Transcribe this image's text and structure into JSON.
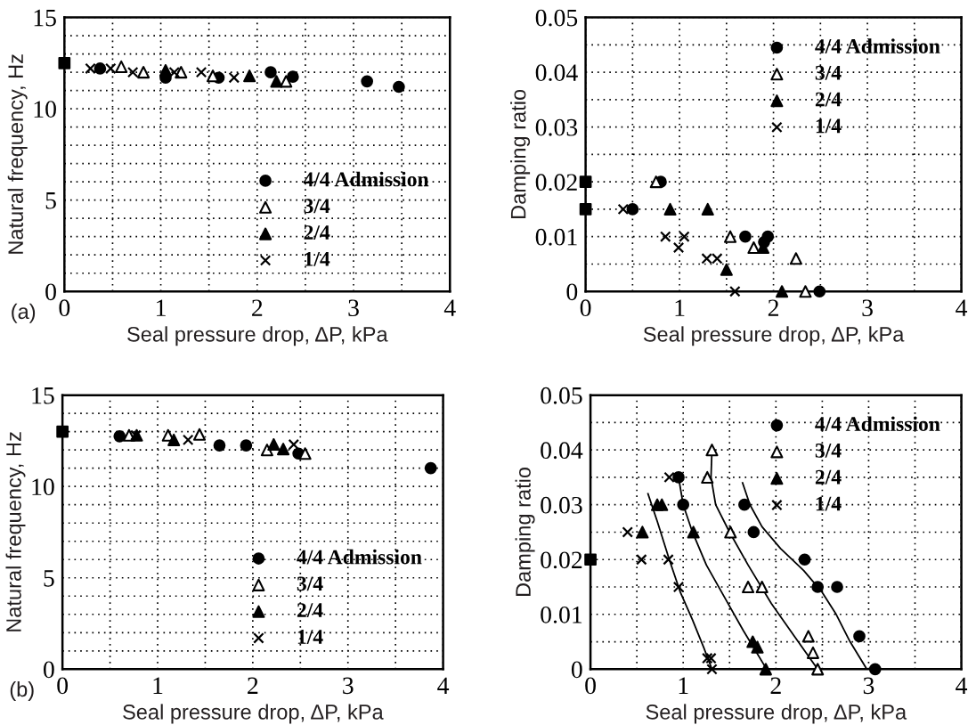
{
  "chart_data": [
    {
      "type": "scatter",
      "xlabel": "Seal pressure drop, ΔP, kPa",
      "ylabel": "Natural frequency, Hz",
      "annotations": [
        "(a)"
      ],
      "xlim": [
        0,
        4
      ],
      "ylim": [
        0,
        15
      ],
      "xticks": [
        0,
        {
          "value": 0.5,
          "label": null
        },
        1,
        {
          "value": 1.5,
          "label": null
        },
        2,
        {
          "value": 2.5,
          "label": null
        },
        3,
        {
          "value": 3.5,
          "label": null
        },
        4
      ],
      "yticks": [
        0,
        {
          "value": 1,
          "label": null
        },
        {
          "value": 2,
          "label": null
        },
        {
          "value": 3,
          "label": null
        },
        {
          "value": 4,
          "label": null
        },
        5,
        {
          "value": 6,
          "label": null
        },
        {
          "value": 7,
          "label": null
        },
        {
          "value": 8,
          "label": null
        },
        {
          "value": 9,
          "label": null
        },
        10,
        {
          "value": 11,
          "label": null
        },
        {
          "value": 12,
          "label": null
        },
        {
          "value": 13,
          "label": null
        },
        {
          "value": 14,
          "label": null
        },
        15
      ],
      "grid": true,
      "legend": "bottom right",
      "series": [
        {
          "name": "4/4 Admission",
          "color": "#000000",
          "marker": "circle",
          "x": [
            0.37,
            1.05,
            1.6,
            2.14,
            2.37,
            3.14,
            3.47
          ],
          "values": [
            12.2,
            11.7,
            11.7,
            12.0,
            11.75,
            11.5,
            11.2
          ]
        },
        {
          "name": "3/4",
          "color": "#ffffff",
          "marker": "triangle",
          "x": [
            0.59,
            0.82,
            1.21,
            1.54,
            2.3
          ],
          "values": [
            12.3,
            12.0,
            12.0,
            11.8,
            11.5
          ]
        },
        {
          "name": "2/4",
          "color": "#000000",
          "marker": "triangle",
          "x": [
            1.05,
            1.92,
            2.2
          ],
          "values": [
            12.1,
            11.8,
            11.5
          ]
        },
        {
          "name": "1/4",
          "color": "#000000",
          "marker": "cross",
          "x": [
            0.27,
            0.48,
            0.71,
            1.14,
            1.42,
            1.76
          ],
          "values": [
            12.2,
            12.2,
            12.0,
            12.0,
            12.0,
            11.7
          ]
        },
        {
          "color": "#000000",
          "marker": "square",
          "x": [
            0
          ],
          "values": [
            12.5
          ]
        }
      ]
    },
    {
      "type": "scatter",
      "xlabel": "Seal pressure drop, ΔP, kPa",
      "ylabel": "Damping ratio",
      "xlim": [
        0,
        4
      ],
      "ylim": [
        0,
        0.05
      ],
      "xticks": [
        0,
        {
          "value": 0.5,
          "label": null
        },
        1,
        {
          "value": 1.5,
          "label": null
        },
        2,
        {
          "value": 2.5,
          "label": null
        },
        3,
        {
          "value": 3.5,
          "label": null
        },
        4
      ],
      "yticks": [
        0,
        {
          "value": 0.005,
          "label": null
        },
        0.01,
        {
          "value": 0.015,
          "label": null
        },
        0.02,
        {
          "value": 0.025,
          "label": null
        },
        0.03,
        {
          "value": 0.035,
          "label": null
        },
        0.04,
        {
          "value": 0.045,
          "label": null
        },
        0.05
      ],
      "grid": true,
      "legend": "top right",
      "series": [
        {
          "name": "4/4 Admission",
          "color": "#000000",
          "marker": "circle",
          "x": [
            0.5,
            0.8,
            1.7,
            1.94,
            1.9,
            2.49
          ],
          "values": [
            0.015,
            0.02,
            0.01,
            0.01,
            0.009,
            0
          ]
        },
        {
          "name": "3/4",
          "color": "#ffffff",
          "marker": "triangle",
          "x": [
            0.75,
            1.54,
            1.79,
            2.24,
            2.34
          ],
          "values": [
            0.02,
            0.01,
            0.008,
            0.006,
            0
          ]
        },
        {
          "name": "2/4",
          "color": "#000000",
          "marker": "triangle",
          "x": [
            0.9,
            1.3,
            1.5,
            1.89,
            2.09
          ],
          "values": [
            0.015,
            0.015,
            0.004,
            0.008,
            0
          ]
        },
        {
          "name": "1/4",
          "color": "#000000",
          "marker": "cross",
          "x": [
            0.4,
            0.85,
            1.05,
            0.99,
            1.29,
            1.4,
            1.59
          ],
          "values": [
            0.015,
            0.01,
            0.01,
            0.008,
            0.006,
            0.006,
            0
          ]
        },
        {
          "color": "#000000",
          "marker": "square",
          "x": [
            0,
            0
          ],
          "values": [
            0.02,
            0.015
          ]
        }
      ]
    },
    {
      "type": "scatter",
      "xlabel": "Seal pressure drop, ΔP, kPa",
      "ylabel": "Natural frequency, Hz",
      "annotations": [
        "(b)"
      ],
      "xlim": [
        0,
        4
      ],
      "ylim": [
        0,
        15
      ],
      "xticks": [
        0,
        {
          "value": 0.5,
          "label": null
        },
        1,
        {
          "value": 1.5,
          "label": null
        },
        2,
        {
          "value": 2.5,
          "label": null
        },
        3,
        {
          "value": 3.5,
          "label": null
        },
        4
      ],
      "yticks": [
        0,
        {
          "value": 1,
          "label": null
        },
        {
          "value": 2,
          "label": null
        },
        {
          "value": 3,
          "label": null
        },
        {
          "value": 4,
          "label": null
        },
        5,
        {
          "value": 6,
          "label": null
        },
        {
          "value": 7,
          "label": null
        },
        {
          "value": 8,
          "label": null
        },
        {
          "value": 9,
          "label": null
        },
        10,
        {
          "value": 11,
          "label": null
        },
        {
          "value": 12,
          "label": null
        },
        {
          "value": 13,
          "label": null
        },
        {
          "value": 14,
          "label": null
        },
        15
      ],
      "grid": true,
      "legend": "bottom right",
      "series": [
        {
          "name": "4/4 Admission",
          "color": "#000000",
          "marker": "circle",
          "x": [
            0.6,
            1.1,
            1.65,
            1.93,
            2.48,
            3.87
          ],
          "values": [
            12.75,
            null,
            12.25,
            12.25,
            11.8,
            11.0
          ]
        },
        {
          "name": "3/4",
          "color": "#ffffff",
          "marker": "triangle",
          "x": [
            0.7,
            1.11,
            1.44,
            2.15,
            2.55
          ],
          "values": [
            12.8,
            12.8,
            12.85,
            12.0,
            11.8
          ]
        },
        {
          "name": "2/4",
          "color": "#000000",
          "marker": "triangle",
          "x": [
            0.78,
            1.17,
            2.22,
            2.32
          ],
          "values": [
            12.8,
            12.55,
            12.3,
            12.05
          ]
        },
        {
          "name": "1/4",
          "color": "#000000",
          "marker": "cross",
          "x": [
            0.77,
            1.32,
            2.43
          ],
          "values": [
            12.8,
            12.55,
            12.3
          ]
        },
        {
          "color": "#000000",
          "marker": "square",
          "x": [
            0
          ],
          "values": [
            13.0
          ]
        }
      ]
    },
    {
      "type": "scatter",
      "xlabel": "Seal pressure drop, ΔP, kPa",
      "ylabel": "Damping ratio",
      "xlim": [
        0,
        4
      ],
      "ylim": [
        0,
        0.05
      ],
      "xticks": [
        0,
        {
          "value": 0.5,
          "label": null
        },
        1,
        {
          "value": 1.5,
          "label": null
        },
        2,
        {
          "value": 2.5,
          "label": null
        },
        3,
        {
          "value": 3.5,
          "label": null
        },
        4
      ],
      "yticks": [
        0,
        {
          "value": 0.005,
          "label": null
        },
        0.01,
        {
          "value": 0.015,
          "label": null
        },
        0.02,
        {
          "value": 0.025,
          "label": null
        },
        0.03,
        {
          "value": 0.035,
          "label": null
        },
        0.04,
        {
          "value": 0.045,
          "label": null
        },
        0.05
      ],
      "grid": true,
      "legend": "top right",
      "series": [
        {
          "name": "4/4 Admission",
          "color": "#000000",
          "marker": "circle",
          "x": [
            0.95,
            1.0,
            1.66,
            1.76,
            2.31,
            2.45,
            2.66,
            2.9,
            3.07
          ],
          "values": [
            0.035,
            0.03,
            0.03,
            0.025,
            0.02,
            0.015,
            0.015,
            0.006,
            0
          ]
        },
        {
          "name": "3/4",
          "color": "#ffffff",
          "marker": "triangle",
          "x": [
            1.31,
            1.26,
            1.51,
            1.7,
            1.85,
            2.35,
            2.4,
            2.45
          ],
          "values": [
            0.04,
            0.035,
            0.025,
            0.015,
            0.015,
            0.006,
            0.003,
            0
          ]
        },
        {
          "name": "2/4",
          "color": "#000000",
          "marker": "triangle",
          "x": [
            0.72,
            0.77,
            0.56,
            1.11,
            1.75,
            1.8,
            1.89
          ],
          "values": [
            0.03,
            0.03,
            0.025,
            0.025,
            0.005,
            0.004,
            0
          ]
        },
        {
          "name": "1/4",
          "color": "#000000",
          "marker": "cross",
          "x": [
            0.85,
            0.4,
            0.55,
            0.84,
            0.95,
            1.26,
            1.3,
            1.31
          ],
          "values": [
            0.035,
            0.025,
            0.02,
            0.02,
            0.015,
            0.002,
            0.002,
            0
          ]
        },
        {
          "color": "#000000",
          "marker": "square",
          "x": [
            0
          ],
          "values": [
            0.02
          ]
        },
        {
          "type": "line",
          "color": "#000000",
          "marker": "none",
          "x": [
            0.62,
            0.72,
            0.85,
            0.97,
            1.1,
            1.22,
            1.31
          ],
          "values": [
            0.032,
            0.027,
            0.02,
            0.014,
            0.009,
            0.004,
            0
          ]
        },
        {
          "type": "line",
          "color": "#000000",
          "marker": "none",
          "x": [
            0.95,
            1.0,
            1.1,
            1.25,
            1.45,
            1.65,
            1.9
          ],
          "values": [
            0.035,
            0.03,
            0.025,
            0.019,
            0.013,
            0.007,
            0
          ]
        },
        {
          "type": "line",
          "color": "#000000",
          "marker": "none",
          "x": [
            1.31,
            1.3,
            1.35,
            1.5,
            1.7,
            1.95,
            2.2,
            2.45
          ],
          "values": [
            0.04,
            0.035,
            0.03,
            0.025,
            0.019,
            0.012,
            0.006,
            0
          ]
        },
        {
          "type": "line",
          "color": "#000000",
          "marker": "none",
          "x": [
            1.64,
            1.72,
            1.85,
            2.05,
            2.3,
            2.5,
            2.65,
            2.8,
            2.98
          ],
          "values": [
            0.034,
            0.03,
            0.026,
            0.022,
            0.018,
            0.014,
            0.01,
            0.005,
            0
          ]
        }
      ]
    }
  ]
}
